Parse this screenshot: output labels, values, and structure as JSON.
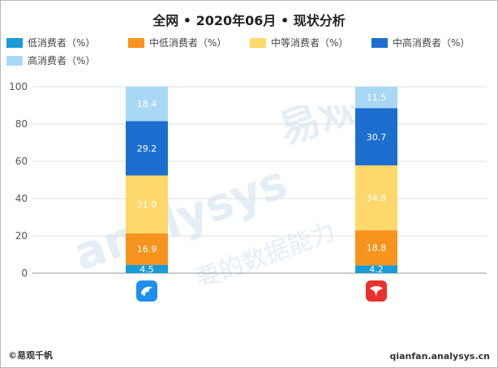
{
  "footer": {
    "copyright": "©易观千帆",
    "site": "qianfan.analysys.cn"
  },
  "watermark": {
    "text": "易观",
    "latin": "analysys",
    "tagline": "要的数据能力"
  },
  "chart_data": {
    "type": "bar",
    "stacked": true,
    "title": "全网 • 2020年06月 • 现状分析",
    "categories": [
      "",
      ""
    ],
    "ylim": [
      0,
      100
    ],
    "yticks": [
      0,
      20,
      40,
      60,
      80,
      100
    ],
    "grid": true,
    "legend_position": "top",
    "series": [
      {
        "name": "低消费者（%）",
        "color": "#1a9ad6",
        "values": [
          4.5,
          4.2
        ]
      },
      {
        "name": "中低消费者（%）",
        "color": "#f7941d",
        "values": [
          16.9,
          18.8
        ]
      },
      {
        "name": "中等消费者（%）",
        "color": "#ffd86b",
        "values": [
          31.0,
          34.8
        ]
      },
      {
        "name": "中高消费者（%）",
        "color": "#1d6fcf",
        "values": [
          29.2,
          30.7
        ]
      },
      {
        "name": "高消费者（%）",
        "color": "#a9d8f7",
        "values": [
          18.4,
          11.5
        ]
      }
    ],
    "category_icons": [
      {
        "icon": "dolphin-app-icon",
        "color": "#1f8ef0"
      },
      {
        "icon": "shark-app-icon",
        "color": "#e8322b"
      }
    ]
  }
}
